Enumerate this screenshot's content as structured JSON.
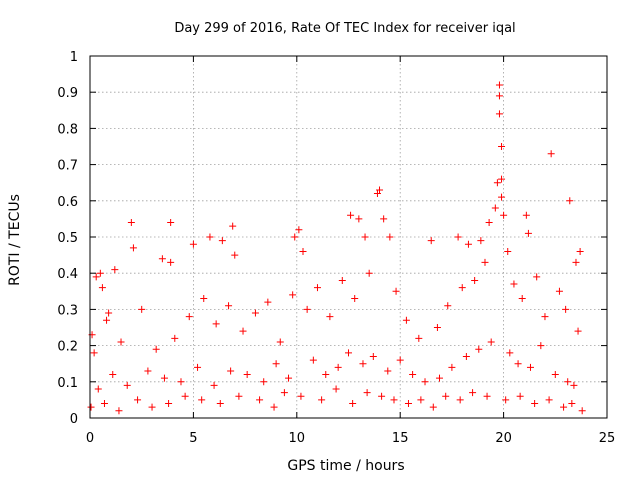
{
  "chart_data": {
    "type": "scatter",
    "title": "Day 299 of 2016, Rate Of TEC Index for receiver iqal",
    "xlabel": "GPS time / hours",
    "ylabel": "ROTI / TECUs",
    "xlim": [
      0,
      25
    ],
    "ylim": [
      0,
      1
    ],
    "xticks": [
      0,
      5,
      10,
      15,
      20,
      25
    ],
    "xtick_labels": [
      "0",
      "5",
      "10",
      "15",
      "20",
      "25"
    ],
    "yticks": [
      0,
      0.1,
      0.2,
      0.3,
      0.4,
      0.5,
      0.6,
      0.7,
      0.8,
      0.9,
      1
    ],
    "ytick_labels": [
      "0",
      "0.1",
      "0.2",
      "0.3",
      "0.4",
      "0.5",
      "0.6",
      "0.7",
      "0.8",
      "0.9",
      "1"
    ],
    "grid": true,
    "marker": "+",
    "color": "#ff0000",
    "series": [
      {
        "name": "ROTI",
        "x": [
          0.1,
          0.3,
          0.5,
          0.6,
          0.9,
          1.2,
          2.0,
          2.1,
          3.5,
          3.9,
          3.9,
          5.0,
          5.8,
          6.4,
          6.9,
          7.0,
          9.9,
          10.1,
          10.3,
          12.6,
          13.0,
          13.3,
          13.9,
          14.0,
          14.2,
          14.5,
          16.5,
          17.8,
          18.3,
          18.9,
          19.3,
          19.6,
          19.7,
          19.8,
          19.8,
          19.8,
          19.9,
          19.9,
          19.9,
          20.0,
          20.2,
          21.1,
          21.2,
          22.3,
          23.2,
          23.5,
          23.7,
          0.2,
          0.8,
          1.5,
          2.5,
          3.2,
          4.1,
          4.8,
          5.5,
          6.1,
          6.7,
          7.4,
          8.0,
          8.6,
          9.2,
          9.8,
          10.5,
          11.0,
          11.6,
          12.2,
          12.8,
          13.5,
          14.8,
          15.3,
          15.9,
          16.8,
          17.3,
          18.0,
          18.6,
          19.1,
          20.5,
          20.9,
          21.6,
          22.0,
          22.7,
          23.0,
          23.6,
          0.4,
          1.1,
          1.8,
          2.8,
          3.6,
          4.4,
          5.2,
          6.0,
          6.8,
          7.6,
          8.4,
          9.0,
          9.6,
          10.8,
          11.4,
          12.0,
          12.5,
          13.2,
          13.7,
          14.4,
          15.0,
          15.6,
          16.2,
          16.9,
          17.5,
          18.2,
          18.8,
          19.4,
          20.3,
          20.7,
          21.3,
          21.8,
          22.5,
          23.1,
          23.4,
          0.05,
          0.7,
          1.4,
          2.3,
          3.0,
          3.8,
          4.6,
          5.4,
          6.3,
          7.2,
          8.2,
          8.9,
          9.4,
          10.2,
          11.2,
          11.9,
          12.7,
          13.4,
          14.1,
          14.7,
          15.4,
          16.0,
          16.6,
          17.2,
          17.9,
          18.5,
          19.2,
          20.1,
          20.8,
          21.5,
          22.2,
          22.9,
          23.3,
          23.8
        ],
        "y": [
          0.23,
          0.39,
          0.4,
          0.36,
          0.29,
          0.41,
          0.54,
          0.47,
          0.44,
          0.54,
          0.43,
          0.48,
          0.5,
          0.49,
          0.53,
          0.45,
          0.5,
          0.52,
          0.46,
          0.56,
          0.55,
          0.5,
          0.62,
          0.63,
          0.55,
          0.5,
          0.49,
          0.5,
          0.48,
          0.49,
          0.54,
          0.58,
          0.65,
          0.92,
          0.89,
          0.84,
          0.75,
          0.66,
          0.61,
          0.56,
          0.46,
          0.56,
          0.51,
          0.73,
          0.6,
          0.43,
          0.46,
          0.18,
          0.27,
          0.21,
          0.3,
          0.19,
          0.22,
          0.28,
          0.33,
          0.26,
          0.31,
          0.24,
          0.29,
          0.32,
          0.21,
          0.34,
          0.3,
          0.36,
          0.28,
          0.38,
          0.33,
          0.4,
          0.35,
          0.27,
          0.22,
          0.25,
          0.31,
          0.36,
          0.38,
          0.43,
          0.37,
          0.33,
          0.39,
          0.28,
          0.35,
          0.3,
          0.24,
          0.08,
          0.12,
          0.09,
          0.13,
          0.11,
          0.1,
          0.14,
          0.09,
          0.13,
          0.12,
          0.1,
          0.15,
          0.11,
          0.16,
          0.12,
          0.14,
          0.18,
          0.15,
          0.17,
          0.13,
          0.16,
          0.12,
          0.1,
          0.11,
          0.14,
          0.17,
          0.19,
          0.21,
          0.18,
          0.15,
          0.14,
          0.2,
          0.12,
          0.1,
          0.09,
          0.03,
          0.04,
          0.02,
          0.05,
          0.03,
          0.04,
          0.06,
          0.05,
          0.04,
          0.06,
          0.05,
          0.03,
          0.07,
          0.06,
          0.05,
          0.08,
          0.04,
          0.07,
          0.06,
          0.05,
          0.04,
          0.05,
          0.03,
          0.06,
          0.05,
          0.07,
          0.06,
          0.05,
          0.06,
          0.04,
          0.05,
          0.03,
          0.04,
          0.02
        ]
      }
    ]
  }
}
